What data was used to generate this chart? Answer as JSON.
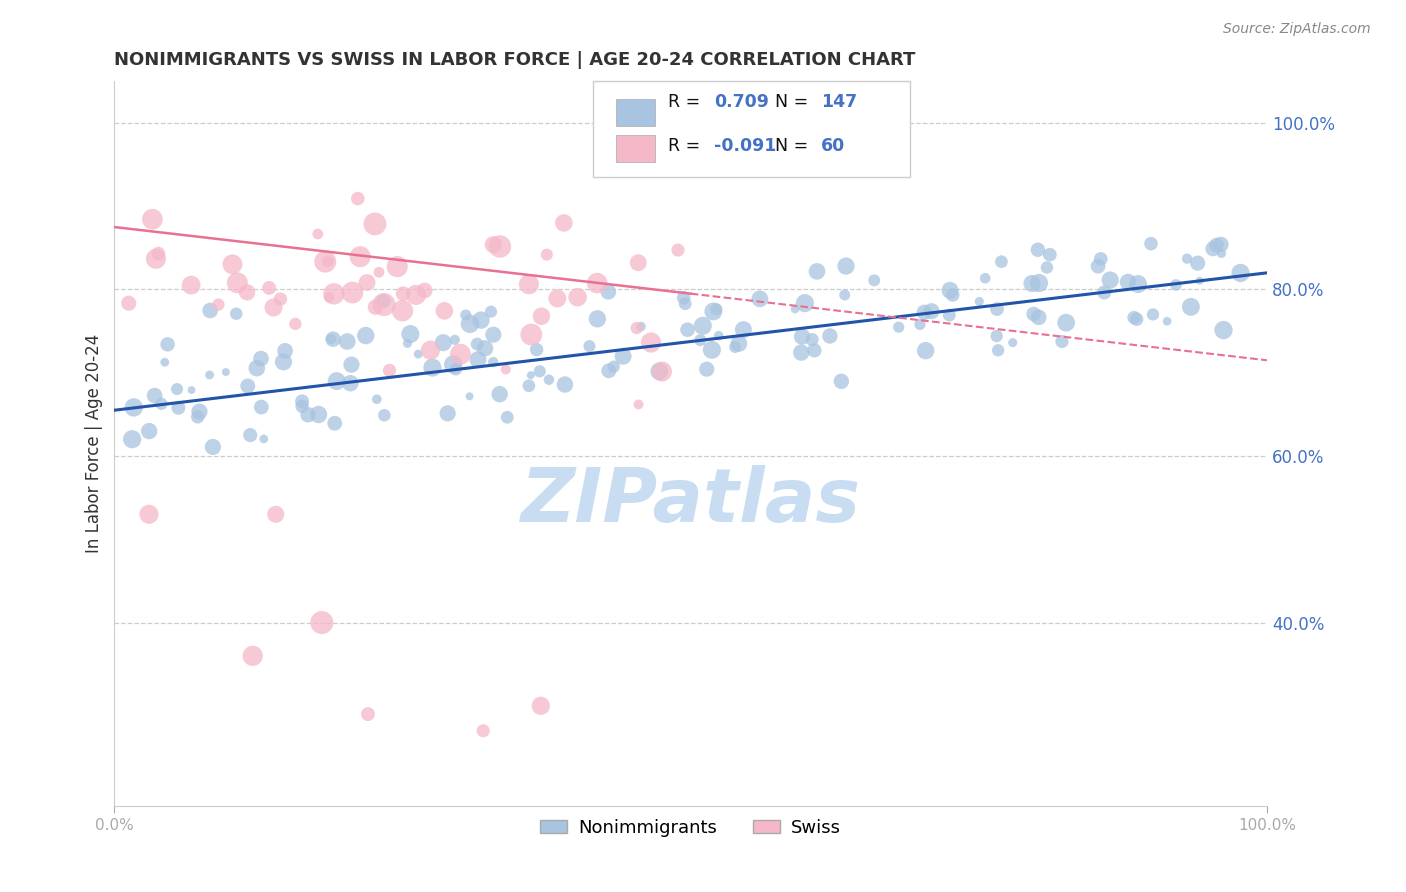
{
  "title": "NONIMMIGRANTS VS SWISS IN LABOR FORCE | AGE 20-24 CORRELATION CHART",
  "source_text": "Source: ZipAtlas.com",
  "ylabel": "In Labor Force | Age 20-24",
  "watermark": "ZIPatlas",
  "legend_blue_label": "Nonimmigrants",
  "legend_pink_label": "Swiss",
  "blue_R": 0.709,
  "blue_N": 147,
  "pink_R": -0.091,
  "pink_N": 60,
  "xlim": [
    0.0,
    1.0
  ],
  "ylim": [
    0.18,
    1.05
  ],
  "blue_color": "#a8c4e0",
  "blue_line_color": "#2255aa",
  "pink_color": "#f4b8c8",
  "pink_line_color": "#e87090",
  "pink_legend_color": "#f4b8c8",
  "blue_legend_color": "#a8c4e0",
  "right_ytick_color": "#4472c4",
  "background_color": "#ffffff",
  "grid_color": "#cccccc",
  "title_color": "#333333",
  "watermark_color": "#c0d8f0",
  "legend_text_color": "#111111",
  "legend_val_color": "#4472c4"
}
